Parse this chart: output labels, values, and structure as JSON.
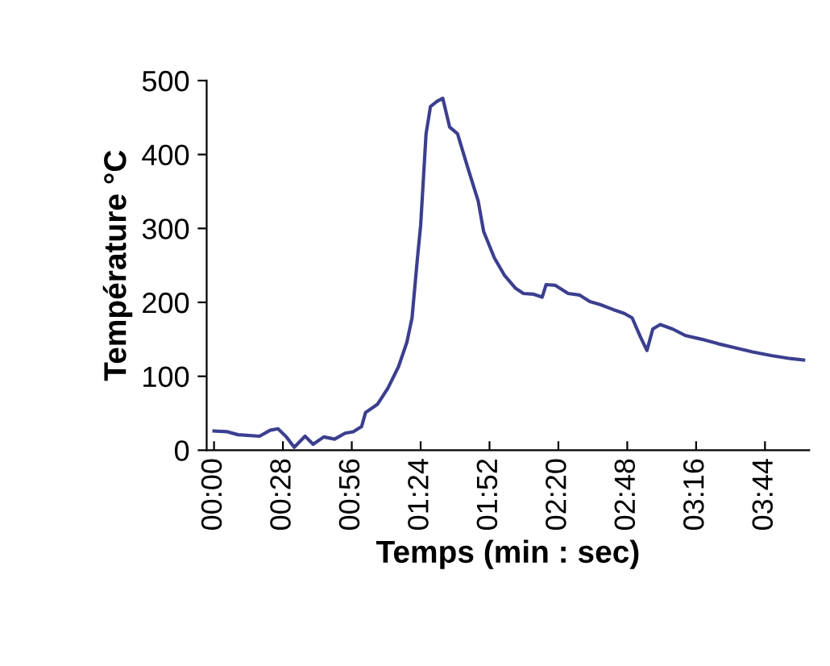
{
  "chart_data": {
    "type": "line",
    "xlabel": "Temps (min : sec)",
    "ylabel": "Température °C",
    "x": [
      0,
      5.4,
      9.7,
      18.5,
      22.8,
      26,
      29.4,
      32.6,
      37,
      40.3,
      44.6,
      49,
      53.3,
      56.6,
      60,
      61.6,
      66.4,
      70.7,
      75,
      78.4,
      80.5,
      82.7,
      84,
      86.2,
      88,
      90.7,
      93,
      95.8,
      99,
      103,
      107.4,
      109.6,
      114,
      118,
      122.6,
      125.8,
      130,
      133.4,
      135,
      138.8,
      144,
      148.5,
      152.8,
      157,
      162.5,
      166.8,
      170,
      173.4,
      176,
      178.4,
      181.4,
      186.4,
      191.8,
      198.4,
      205,
      211.4,
      219,
      226.6,
      234.3,
      239.7
    ],
    "series": [
      {
        "color": "#3c3f8f",
        "values": [
          26,
          25,
          21,
          19,
          27,
          29,
          18,
          4,
          19,
          8,
          18,
          15,
          23,
          25,
          32,
          51,
          62,
          84,
          113,
          146,
          179,
          260,
          304,
          428,
          465,
          472,
          476,
          437,
          428,
          384,
          337,
          296,
          260,
          237,
          219,
          212,
          211,
          207,
          224,
          223,
          212,
          210,
          201,
          197,
          190,
          185,
          179,
          153,
          135,
          164,
          170,
          164,
          155,
          150,
          144,
          139,
          133,
          128,
          124,
          122
        ]
      }
    ],
    "xlim": [
      -3,
      242
    ],
    "xticks": [
      {
        "value": 0,
        "label": "00:00"
      },
      {
        "value": 28,
        "label": "00:28"
      },
      {
        "value": 56,
        "label": "00:56"
      },
      {
        "value": 84,
        "label": "01:24"
      },
      {
        "value": 112,
        "label": "01:52"
      },
      {
        "value": 140,
        "label": "02:20"
      },
      {
        "value": 168,
        "label": "02:48"
      },
      {
        "value": 196,
        "label": "03:16"
      },
      {
        "value": 224,
        "label": "03:44"
      }
    ],
    "ylim": [
      0,
      500
    ],
    "yticks": [
      0,
      100,
      200,
      300,
      400,
      500
    ],
    "grid": false,
    "legend": false,
    "marker": "none",
    "line_style": "solid"
  }
}
